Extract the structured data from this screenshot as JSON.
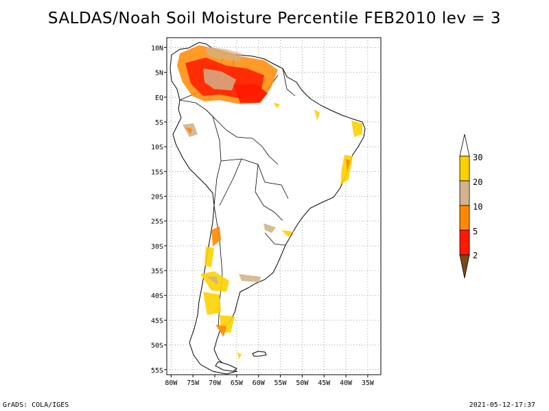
{
  "title": "SALDAS/Noah Soil Moisture Percentile FEB2010 lev = 3",
  "footer": {
    "left": "GrADS: COLA/IGES",
    "right": "2021-05-12-17:37"
  },
  "map": {
    "lon_range": [
      -81,
      -32
    ],
    "lat_range": [
      -56,
      12
    ],
    "lon_ticks": [
      "80W",
      "75W",
      "70W",
      "65W",
      "60W",
      "55W",
      "50W",
      "45W",
      "40W",
      "35W"
    ],
    "lat_ticks": [
      "10N",
      "5N",
      "EQ",
      "5S",
      "10S",
      "15S",
      "20S",
      "25S",
      "30S",
      "35S",
      "40S",
      "45S",
      "50S",
      "55S"
    ],
    "grid": "dotted"
  },
  "legend": {
    "levels": [
      "2",
      "5",
      "10",
      "20",
      "30"
    ],
    "colors": {
      "lt2": "#7a4a1a",
      "r2_5": "#ff1a00",
      "r5_10": "#ff8a00",
      "r10_20": "#d2b48c",
      "r20_30": "#ffd000",
      "gt30": "#ffffff"
    }
  }
}
